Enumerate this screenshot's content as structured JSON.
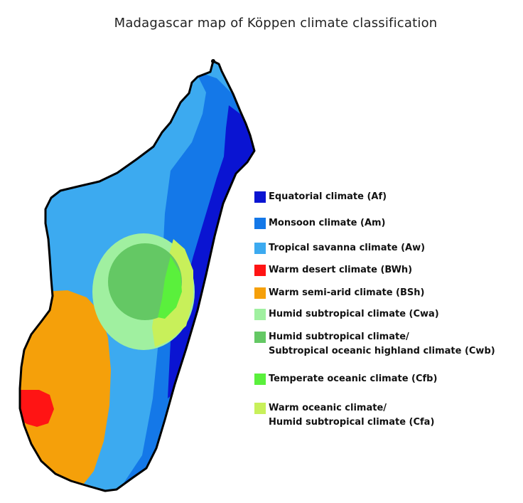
{
  "title": "Madagascar map of Köppen climate classification",
  "legend": [
    {
      "label": "Equatorial climate (Af)",
      "color": "#0a14d2"
    },
    {
      "label": "Monsoon climate (Am)",
      "color": "#1478e8"
    },
    {
      "label": "Tropical savanna climate (Aw)",
      "color": "#3caaf0"
    },
    {
      "label": "Warm desert climate (BWh)",
      "color": "#ff1414"
    },
    {
      "label": "Warm semi-arid climate (BSh)",
      "color": "#f5a00a"
    },
    {
      "label": "Humid subtropical climate (Cwa)",
      "color": "#a0f0a0"
    },
    {
      "label": "Humid subtropical climate/\nSubtropical oceanic highland climate (Cwb)",
      "color": "#64c864"
    },
    {
      "label": "Temperate oceanic climate (Cfb)",
      "color": "#5af03c"
    },
    {
      "label": "Warm oceanic climate/\nHumid subtropical climate (Cfa)",
      "color": "#c8f05a"
    }
  ]
}
